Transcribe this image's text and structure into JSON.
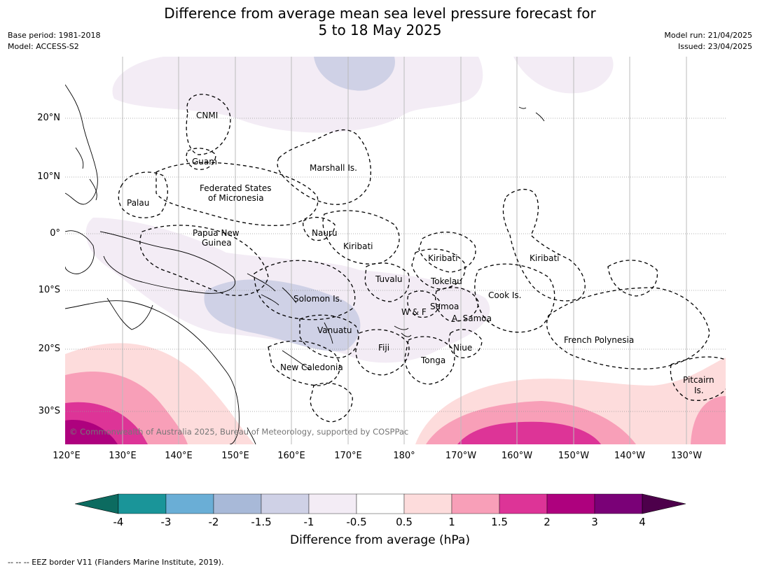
{
  "header": {
    "title_line1": "Difference from average mean sea level pressure forecast for",
    "title_line2": "5 to 18 May 2025",
    "base_period": "Base period: 1981-2018",
    "model": "Model: ACCESS-S2",
    "model_run": "Model run: 21/04/2025",
    "issued": "Issued: 23/04/2025"
  },
  "map": {
    "lat_ticks": [
      "20°N",
      "10°N",
      "0°",
      "10°S",
      "20°S",
      "30°S"
    ],
    "lon_ticks": [
      "120°E",
      "130°E",
      "140°E",
      "150°E",
      "160°E",
      "170°E",
      "180°",
      "170°W",
      "160°W",
      "150°W",
      "140°W",
      "130°W"
    ],
    "regions": {
      "cnmi": "CNMI",
      "guam": "Guam",
      "marshall": "Marshall Is.",
      "fsm_1": "Federated States",
      "fsm_2": "of Micronesia",
      "palau": "Palau",
      "png_1": "Papua New",
      "png_2": "Guinea",
      "nauru": "Nauru",
      "kiribati_west": "Kiribati",
      "kiribati_central": "Kiribati",
      "kiribati_east": "Kiribati",
      "tuvalu": "Tuvalu",
      "tokelau": "Tokelau",
      "cook": "Cook Is.",
      "solomon": "Solomon Is.",
      "wallis": "W & F",
      "samoa": "Samoa",
      "american_samoa": "A. Samoa",
      "vanuatu": "Vanuatu",
      "fiji": "Fiji",
      "niue": "Niue",
      "tonga": "Tonga",
      "new_caledonia": "New Caledonia",
      "french_polynesia": "French Polynesia",
      "pitcairn_1": "Pitcairn",
      "pitcairn_2": "Is."
    },
    "copyright": "© Commonwealth of Australia 2025, Bureau of Meteorology, supported by COSPPac"
  },
  "colorbar": {
    "ticks": [
      "-4",
      "-3",
      "-2",
      "-1.5",
      "-1",
      "-0.5",
      "0.5",
      "1",
      "1.5",
      "2",
      "3",
      "4"
    ],
    "colors": [
      "#0c6b60",
      "#1a9599",
      "#6aaed6",
      "#a8b9d8",
      "#cfd1e6",
      "#f3ecf5",
      "#ffffff",
      "#fddcdc",
      "#f89fb8",
      "#dd3497",
      "#ae017e",
      "#7a0177",
      "#4d004b"
    ],
    "label": "Difference from average (hPa)"
  },
  "footer": {
    "legend": "--  --  -- EEZ border V11 (Flanders Marine Institute, 2019)."
  }
}
